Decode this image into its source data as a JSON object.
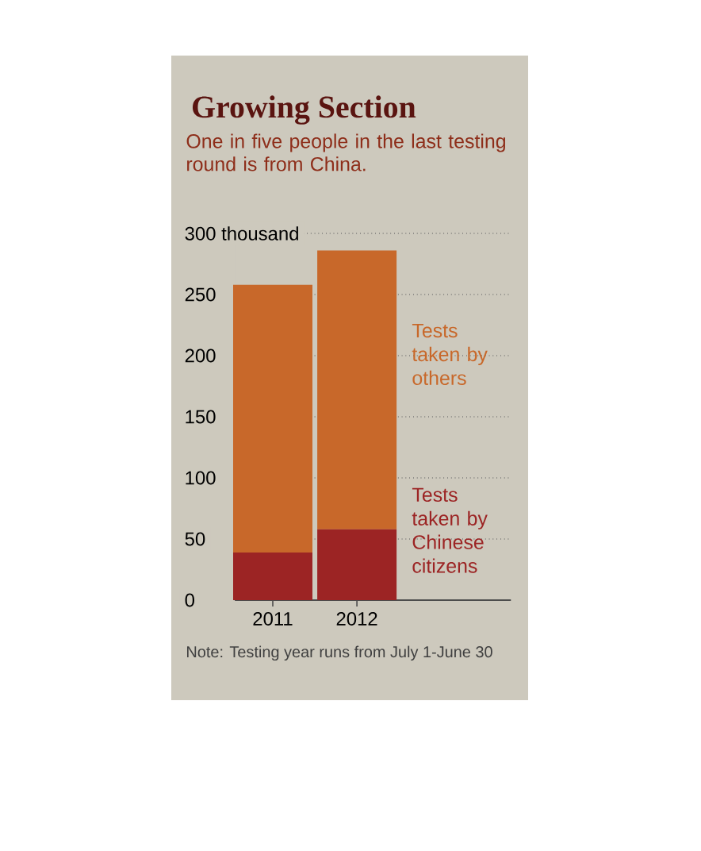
{
  "chart_data": {
    "type": "bar",
    "title": "Growing Section",
    "subtitle": "One in five people in the last testing round is from China.",
    "categories": [
      "2011",
      "2012"
    ],
    "stacked": true,
    "series": [
      {
        "name": "Tests taken by Chinese citizens",
        "color": "#9c2424",
        "values": [
          39,
          58
        ]
      },
      {
        "name": "Tests taken by others",
        "color": "#c8682a",
        "values": [
          219,
          228
        ]
      }
    ],
    "ylim": [
      0,
      300
    ],
    "yticks": [
      0,
      50,
      100,
      150,
      200,
      250,
      {
        "value": 300,
        "label": "300 thousand"
      }
    ],
    "grid": "y",
    "legend": false,
    "annotations": [
      "Note: Testing year runs from July 1-June 30"
    ]
  }
}
